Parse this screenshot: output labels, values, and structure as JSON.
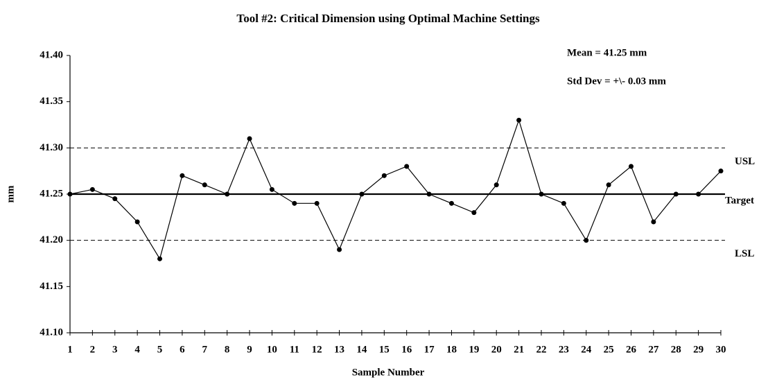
{
  "chart_data": {
    "type": "line",
    "title": "Tool #2:  Critical Dimension using Optimal Machine Settings",
    "xlabel": "Sample Number",
    "ylabel": "mm",
    "annotations": [
      "Mean = 41.25 mm",
      "Std Dev = +\\- 0.03 mm"
    ],
    "x": [
      1,
      2,
      3,
      4,
      5,
      6,
      7,
      8,
      9,
      10,
      11,
      12,
      13,
      14,
      15,
      16,
      17,
      18,
      19,
      20,
      21,
      22,
      23,
      24,
      25,
      26,
      27,
      28,
      29,
      30
    ],
    "values": [
      41.25,
      41.255,
      41.245,
      41.22,
      41.18,
      41.27,
      41.26,
      41.25,
      41.31,
      41.255,
      41.24,
      41.24,
      41.19,
      41.25,
      41.27,
      41.28,
      41.25,
      41.24,
      41.23,
      41.26,
      41.33,
      41.25,
      41.24,
      41.2,
      41.26,
      41.28,
      41.22,
      41.25,
      41.25,
      41.275
    ],
    "color": "#000000",
    "xlim": [
      1,
      30
    ],
    "xticks": [
      1,
      2,
      3,
      4,
      5,
      6,
      7,
      8,
      9,
      10,
      11,
      12,
      13,
      14,
      15,
      16,
      17,
      18,
      19,
      20,
      21,
      22,
      23,
      24,
      25,
      26,
      27,
      28,
      29,
      30
    ],
    "ylim": [
      41.1,
      41.4
    ],
    "yticks": [
      {
        "value": 41.1,
        "label": "41.10"
      },
      41.15,
      {
        "value": 41.2,
        "label": "41.20"
      },
      41.25,
      {
        "value": 41.3,
        "label": "41.30"
      },
      41.35,
      {
        "value": 41.4,
        "label": "41.40"
      }
    ],
    "reference_lines": [
      {
        "label": "USL",
        "value": 41.3,
        "style": "dashed"
      },
      {
        "label": "Target",
        "value": 41.25,
        "style": "solid"
      },
      {
        "label": "LSL",
        "value": 41.2,
        "style": "dashed"
      }
    ]
  }
}
